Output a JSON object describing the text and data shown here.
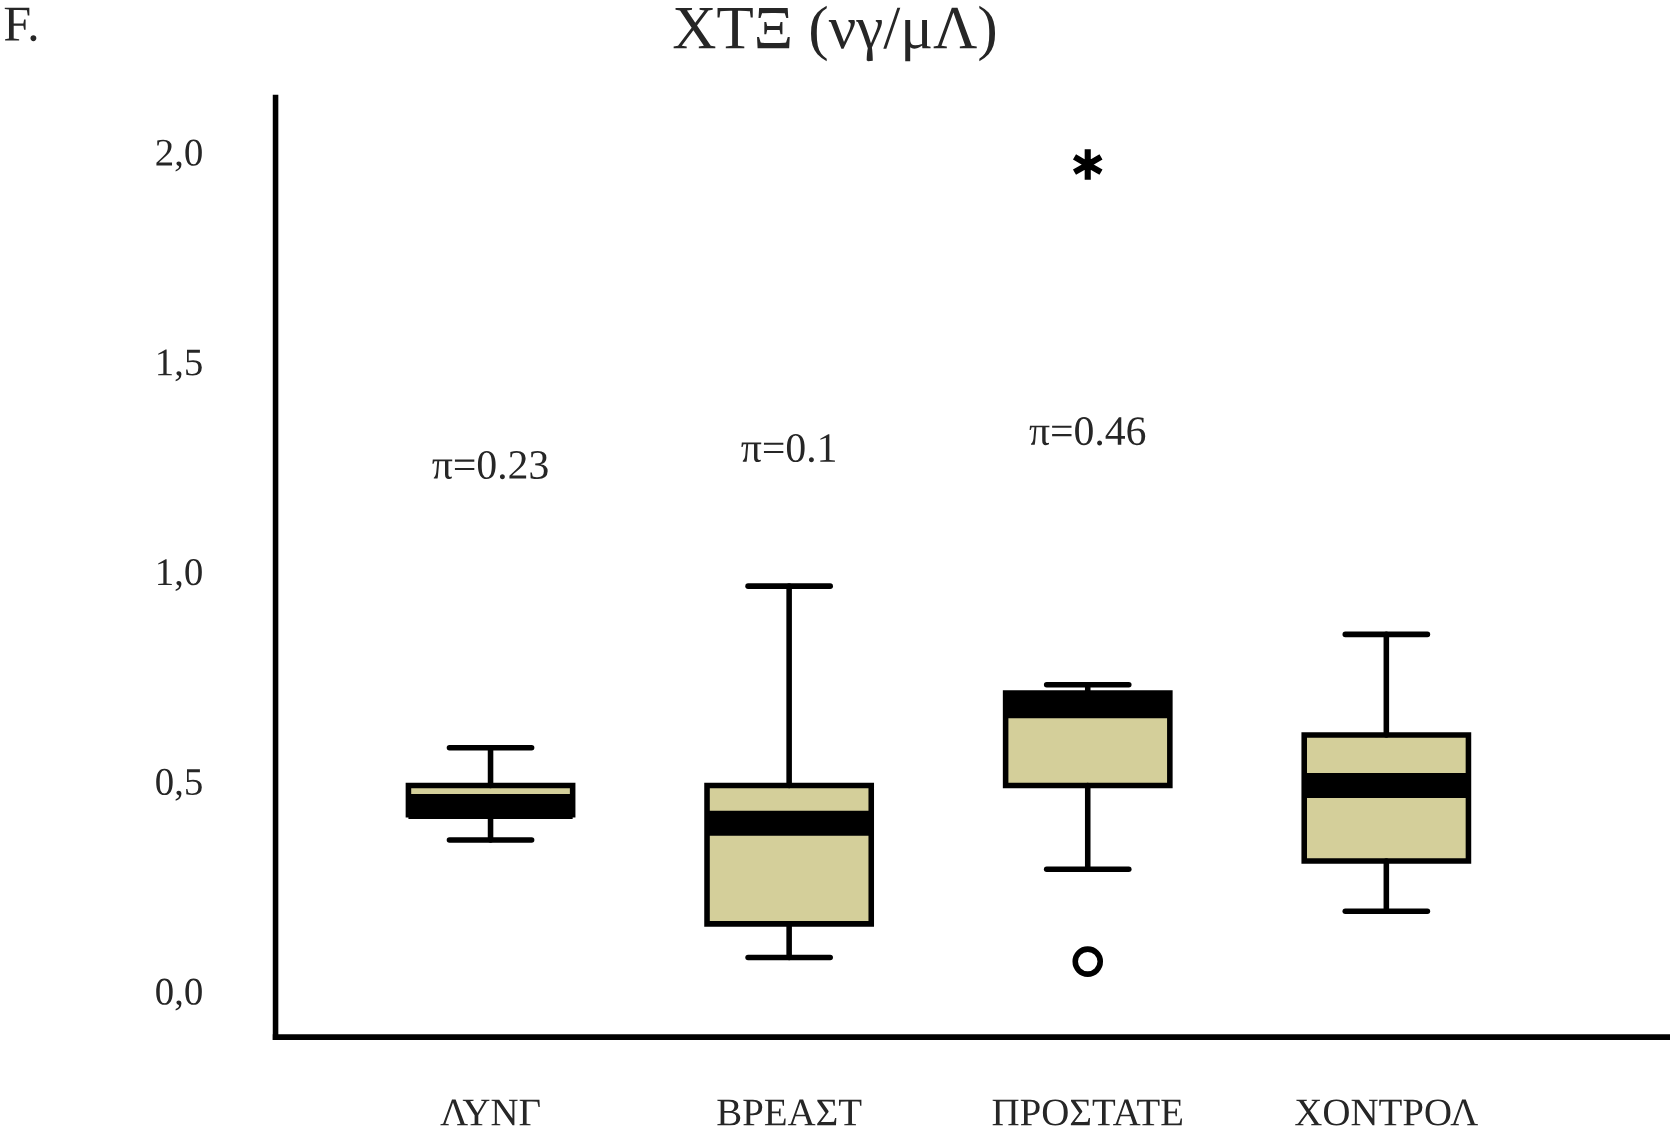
{
  "chart_data": {
    "type": "box",
    "title": "ΧΤΞ (νγ/μΛ)",
    "categories": [
      "ΛΥΝΓ",
      "ΒΡΕΑΣΤ",
      "ΠΡΟΣΤΑΤΕ",
      "ΧΟΝΤΡΟΛ"
    ],
    "color": "#d4cf9a",
    "boxes": [
      {
        "low": 0.36,
        "q1": 0.42,
        "median": 0.44,
        "q3": 0.49,
        "high": 0.58
      },
      {
        "low": 0.08,
        "q1": 0.16,
        "median": 0.4,
        "q3": 0.49,
        "high": 0.965
      },
      {
        "low": 0.29,
        "q1": 0.49,
        "median": 0.68,
        "q3": 0.71,
        "high": 0.73,
        "outliers": [
          0.07,
          1.97
        ]
      },
      {
        "low": 0.19,
        "q1": 0.31,
        "median": 0.49,
        "q3": 0.61,
        "high": 0.85
      }
    ],
    "ylim": [
      -0.11,
      2.13
    ],
    "yticks": [
      {
        "value": 0,
        "label": "0,0"
      },
      {
        "value": 0.5,
        "label": "0,5"
      },
      {
        "value": 1,
        "label": "1,0"
      },
      {
        "value": 1.5,
        "label": "1,5"
      },
      {
        "value": 2,
        "label": "2,0"
      }
    ],
    "grid": false,
    "annotations": [
      "F.",
      "π=0.23",
      "π=0.1",
      "π=0.46"
    ]
  }
}
